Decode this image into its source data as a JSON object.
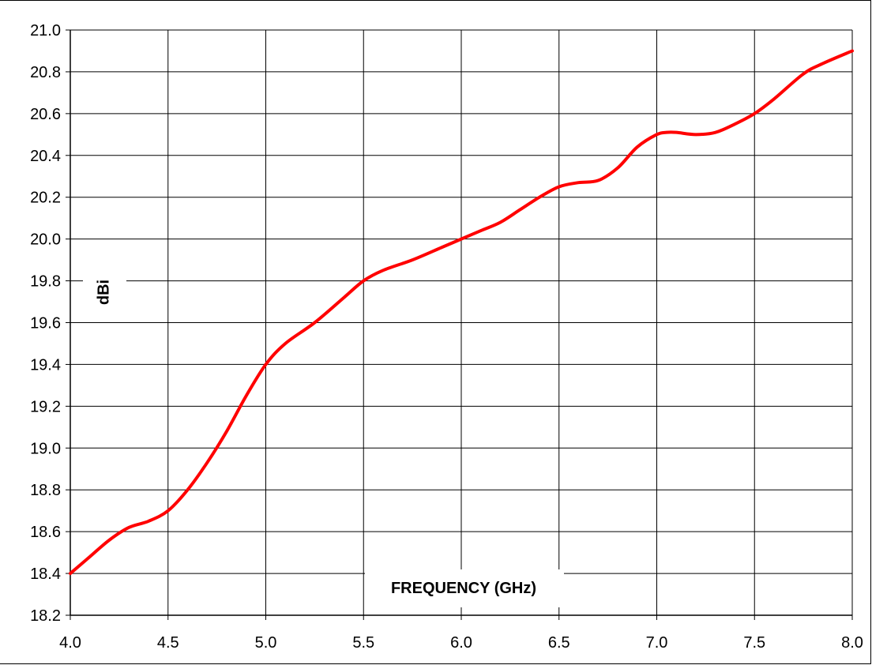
{
  "chart_data": {
    "type": "line",
    "title": "",
    "xlabel": "FREQUENCY (GHz)",
    "ylabel": "dBi",
    "xlim": [
      4.0,
      8.0
    ],
    "ylim": [
      18.2,
      21.0
    ],
    "x_ticks": [
      "4.0",
      "4.5",
      "5.0",
      "5.5",
      "6.0",
      "6.5",
      "7.0",
      "7.5",
      "8.0"
    ],
    "y_ticks": [
      "18.2",
      "18.4",
      "18.6",
      "18.8",
      "19.0",
      "19.2",
      "19.4",
      "19.6",
      "19.8",
      "20.0",
      "20.2",
      "20.4",
      "20.6",
      "20.8",
      "21.0"
    ],
    "grid": true,
    "legend": "none",
    "series": [
      {
        "color": "#ff0000",
        "x": [
          4.0,
          4.1,
          4.2,
          4.3,
          4.4,
          4.5,
          4.6,
          4.7,
          4.8,
          4.9,
          5.0,
          5.1,
          5.25,
          5.4,
          5.5,
          5.6,
          5.75,
          5.9,
          6.0,
          6.1,
          6.2,
          6.3,
          6.4,
          6.5,
          6.6,
          6.7,
          6.8,
          6.9,
          7.0,
          7.05,
          7.1,
          7.2,
          7.3,
          7.4,
          7.5,
          7.6,
          7.75,
          7.85,
          8.0
        ],
        "y": [
          18.4,
          18.48,
          18.56,
          18.62,
          18.65,
          18.7,
          18.8,
          18.93,
          19.08,
          19.25,
          19.4,
          19.5,
          19.6,
          19.72,
          19.8,
          19.85,
          19.9,
          19.96,
          20.0,
          20.04,
          20.08,
          20.14,
          20.2,
          20.25,
          20.27,
          20.28,
          20.34,
          20.44,
          20.5,
          20.51,
          20.51,
          20.5,
          20.51,
          20.55,
          20.6,
          20.67,
          20.79,
          20.84,
          20.9
        ]
      }
    ]
  }
}
